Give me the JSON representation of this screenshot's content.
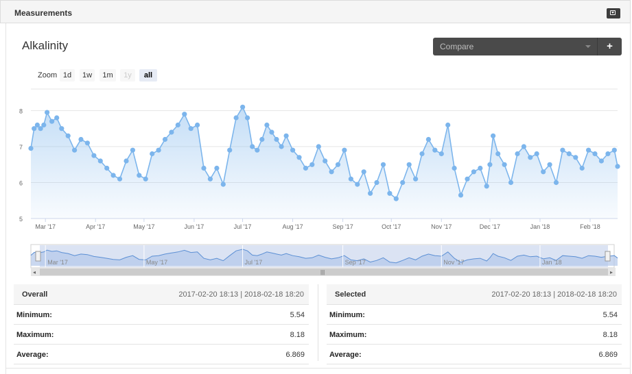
{
  "panel": {
    "title": "Measurements"
  },
  "chart_title": "Alkalinity",
  "compare": {
    "placeholder": "Compare",
    "add_label": "+"
  },
  "zoom": {
    "label": "Zoom",
    "buttons": [
      {
        "label": "1d",
        "state": "normal"
      },
      {
        "label": "1w",
        "state": "normal"
      },
      {
        "label": "1m",
        "state": "normal"
      },
      {
        "label": "1y",
        "state": "disabled"
      },
      {
        "label": "all",
        "state": "active"
      }
    ]
  },
  "chart_data": {
    "type": "area",
    "title": "",
    "y_ticks": [
      "5",
      "6",
      "7",
      "8"
    ],
    "ylim": [
      5,
      8.6
    ],
    "x_ticks": [
      "Mar '17",
      "Apr '17",
      "May '17",
      "Jun '17",
      "Jul '17",
      "Aug '17",
      "Sep '17",
      "Oct '17",
      "Nov '17",
      "Dec '17",
      "Jan '18",
      "Feb '18"
    ],
    "navigator_ticks": [
      "Mar '17",
      "May '17",
      "Jul '17",
      "Sep '17",
      "Nov '17",
      "Jan '18"
    ],
    "x_range": [
      "2017-02-20",
      "2018-02-18"
    ],
    "series": [
      {
        "x": [
          "2017-02-20",
          "2017-02-22",
          "2017-02-24",
          "2017-02-26",
          "2017-02-28",
          "2017-03-02",
          "2017-03-05",
          "2017-03-08",
          "2017-03-11",
          "2017-03-15",
          "2017-03-19",
          "2017-03-23",
          "2017-03-27",
          "2017-03-31",
          "2017-04-04",
          "2017-04-08",
          "2017-04-12",
          "2017-04-16",
          "2017-04-20",
          "2017-04-24",
          "2017-04-28",
          "2017-05-02",
          "2017-05-06",
          "2017-05-10",
          "2017-05-14",
          "2017-05-18",
          "2017-05-22",
          "2017-05-26",
          "2017-05-30",
          "2017-06-03",
          "2017-06-07",
          "2017-06-11",
          "2017-06-15",
          "2017-06-19",
          "2017-06-23",
          "2017-06-27",
          "2017-07-01",
          "2017-07-04",
          "2017-07-07",
          "2017-07-10",
          "2017-07-13",
          "2017-07-16",
          "2017-07-19",
          "2017-07-22",
          "2017-07-25",
          "2017-07-28",
          "2017-08-01",
          "2017-08-05",
          "2017-08-09",
          "2017-08-13",
          "2017-08-17",
          "2017-08-21",
          "2017-08-25",
          "2017-08-29",
          "2017-09-02",
          "2017-09-06",
          "2017-09-10",
          "2017-09-14",
          "2017-09-18",
          "2017-09-22",
          "2017-09-26",
          "2017-09-30",
          "2017-10-04",
          "2017-10-08",
          "2017-10-12",
          "2017-10-16",
          "2017-10-20",
          "2017-10-24",
          "2017-10-28",
          "2017-11-01",
          "2017-11-05",
          "2017-11-09",
          "2017-11-13",
          "2017-11-17",
          "2017-11-21",
          "2017-11-25",
          "2017-11-29",
          "2017-12-01",
          "2017-12-03",
          "2017-12-06",
          "2017-12-10",
          "2017-12-14",
          "2017-12-18",
          "2017-12-22",
          "2017-12-26",
          "2017-12-30",
          "2018-01-03",
          "2018-01-07",
          "2018-01-11",
          "2018-01-15",
          "2018-01-19",
          "2018-01-23",
          "2018-01-27",
          "2018-01-31",
          "2018-02-04",
          "2018-02-08",
          "2018-02-12",
          "2018-02-16",
          "2018-02-18"
        ],
        "y": [
          6.95,
          7.5,
          7.6,
          7.5,
          7.6,
          7.95,
          7.7,
          7.8,
          7.5,
          7.3,
          6.9,
          7.2,
          7.1,
          6.75,
          6.6,
          6.4,
          6.2,
          6.1,
          6.6,
          6.9,
          6.2,
          6.1,
          6.8,
          6.9,
          7.2,
          7.4,
          7.6,
          7.9,
          7.5,
          7.6,
          6.4,
          6.1,
          6.4,
          5.95,
          6.9,
          7.8,
          8.1,
          7.8,
          7.0,
          6.9,
          7.2,
          7.6,
          7.4,
          7.2,
          7.0,
          7.3,
          6.9,
          6.7,
          6.4,
          6.5,
          7.0,
          6.6,
          6.3,
          6.5,
          6.9,
          6.1,
          5.95,
          6.3,
          5.7,
          6.0,
          6.5,
          5.7,
          5.55,
          6.0,
          6.5,
          6.1,
          6.8,
          7.2,
          6.9,
          6.8,
          7.6,
          6.4,
          5.65,
          6.1,
          6.3,
          6.4,
          5.9,
          6.5,
          7.3,
          6.8,
          6.5,
          6.0,
          6.8,
          7.0,
          6.7,
          6.8,
          6.3,
          6.5,
          6.0,
          6.9,
          6.8,
          6.7,
          6.4,
          6.9,
          6.8,
          6.6,
          6.8,
          6.9,
          6.45
        ],
        "name": ""
      }
    ]
  },
  "stats": {
    "overall": {
      "title": "Overall",
      "range": "2017-02-20 18:13 | 2018-02-18 18:20",
      "min_label": "Minimum:",
      "min": "5.54",
      "max_label": "Maximum:",
      "max": "8.18",
      "avg_label": "Average:",
      "avg": "6.869"
    },
    "selected": {
      "title": "Selected",
      "range": "2017-02-20 18:13 | 2018-02-18 18:20",
      "min_label": "Minimum:",
      "min": "5.54",
      "max_label": "Maximum:",
      "max": "8.18",
      "avg_label": "Average:",
      "avg": "6.869"
    }
  },
  "colors": {
    "series": "#7cb5ec",
    "navigator_mask": "#c8d4ec"
  }
}
